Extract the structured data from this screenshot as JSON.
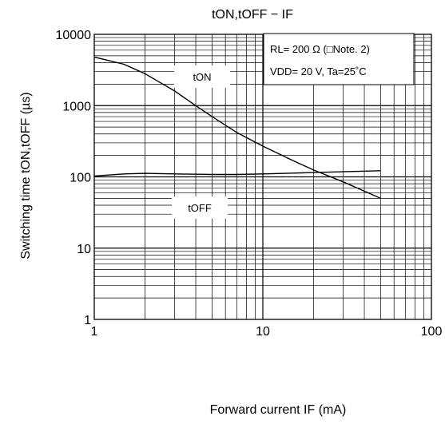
{
  "chart_data": {
    "type": "line",
    "title": "tON,tOFF − IF",
    "xlabel": "Forward current  IF   (mA)",
    "ylabel": "Switching time   tON,tOFF   (µs)",
    "x_scale": "log",
    "y_scale": "log",
    "xlim": [
      1,
      100
    ],
    "ylim": [
      1,
      10000
    ],
    "grid": true,
    "x_ticks": [
      "1",
      "10",
      "100"
    ],
    "y_ticks": [
      "1",
      "10",
      "100",
      "1000",
      "10000"
    ],
    "annotation": {
      "line1": "RL= 200 Ω (□Note. 2)",
      "line2": "VDD= 20 V, Ta=25˚C"
    },
    "series": [
      {
        "name": "tON",
        "x": [
          1,
          1.5,
          2,
          3,
          4,
          5,
          7,
          10,
          15,
          20,
          30,
          50
        ],
        "y": [
          4800,
          3800,
          2800,
          1600,
          1000,
          700,
          420,
          270,
          170,
          125,
          85,
          50
        ]
      },
      {
        "name": "tOFF",
        "x": [
          1,
          1.5,
          2,
          3,
          5,
          7,
          10,
          15,
          20,
          30,
          50
        ],
        "y": [
          103,
          110,
          112,
          110,
          108,
          108,
          110,
          113,
          115,
          118,
          122
        ]
      }
    ]
  }
}
